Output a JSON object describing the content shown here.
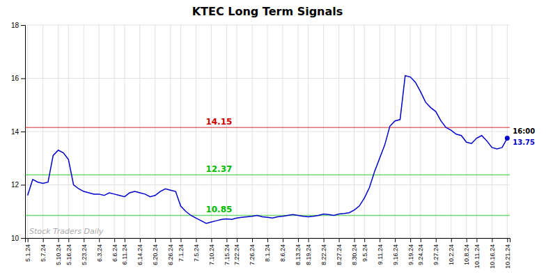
{
  "chart_data": {
    "type": "line",
    "title": "KTEC Long Term Signals",
    "categories": [
      "5.1.24",
      null,
      null,
      "5.7.24",
      null,
      null,
      "5.10.24",
      null,
      "5.16.24",
      null,
      null,
      "5.23.24",
      null,
      null,
      "6.3.24",
      null,
      null,
      "6.6.24",
      null,
      "6.11.24",
      null,
      null,
      "6.14.24",
      null,
      null,
      "6.20.24",
      null,
      null,
      "6.26.24",
      null,
      "7.1.24",
      null,
      null,
      "7.5.24",
      null,
      null,
      "7.10.24",
      null,
      null,
      "7.15.24",
      null,
      "7.22.24",
      null,
      null,
      "7.26.24",
      null,
      null,
      "8.1.24",
      null,
      null,
      "8.6.24",
      null,
      null,
      "8.13.24",
      null,
      "8.19.24",
      null,
      null,
      "8.22.24",
      null,
      null,
      "8.27.24",
      null,
      null,
      "8.30.24",
      null,
      "9.5.24",
      null,
      null,
      "9.11.24",
      null,
      null,
      "9.16.24",
      null,
      null,
      "9.19.24",
      null,
      "9.24.24",
      null,
      null,
      "9.27.24",
      null,
      null,
      "10.2.24",
      null,
      null,
      "10.8.24",
      null,
      "10.11.24",
      null,
      null,
      "10.16.24",
      null,
      null,
      "10.21.24"
    ],
    "values": [
      11.6,
      12.2,
      12.1,
      12.05,
      12.1,
      13.1,
      13.3,
      13.2,
      12.95,
      12.0,
      11.85,
      11.75,
      11.7,
      11.65,
      11.65,
      11.6,
      11.7,
      11.65,
      11.6,
      11.55,
      11.7,
      11.75,
      11.7,
      11.65,
      11.55,
      11.6,
      11.75,
      11.85,
      11.8,
      11.75,
      11.2,
      11.0,
      10.85,
      10.75,
      10.65,
      10.55,
      10.6,
      10.65,
      10.7,
      10.72,
      10.7,
      10.75,
      10.78,
      10.8,
      10.82,
      10.85,
      10.8,
      10.78,
      10.75,
      10.8,
      10.82,
      10.85,
      10.88,
      10.85,
      10.82,
      10.8,
      10.82,
      10.85,
      10.9,
      10.88,
      10.85,
      10.9,
      10.92,
      10.95,
      11.05,
      11.2,
      11.5,
      11.9,
      12.5,
      13.0,
      13.5,
      14.2,
      14.4,
      14.45,
      16.1,
      16.05,
      15.85,
      15.5,
      15.1,
      14.9,
      14.75,
      14.4,
      14.15,
      14.05,
      13.9,
      13.85,
      13.6,
      13.55,
      13.75,
      13.85,
      13.65,
      13.4,
      13.35,
      13.4,
      13.75
    ],
    "color": "#0000cc",
    "hlines": [
      {
        "value": 14.15,
        "label": "14.15",
        "color": "#cc0000"
      },
      {
        "value": 12.37,
        "label": "12.37",
        "color": "#00bb00"
      },
      {
        "value": 10.85,
        "label": "10.85",
        "color": "#00bb00"
      }
    ],
    "end_labels": [
      "16:00",
      "13.75"
    ],
    "watermark": "Stock Traders Daily",
    "ylim": [
      10,
      18
    ],
    "yticks": [
      10,
      12,
      14,
      16,
      18
    ],
    "grid": true
  }
}
